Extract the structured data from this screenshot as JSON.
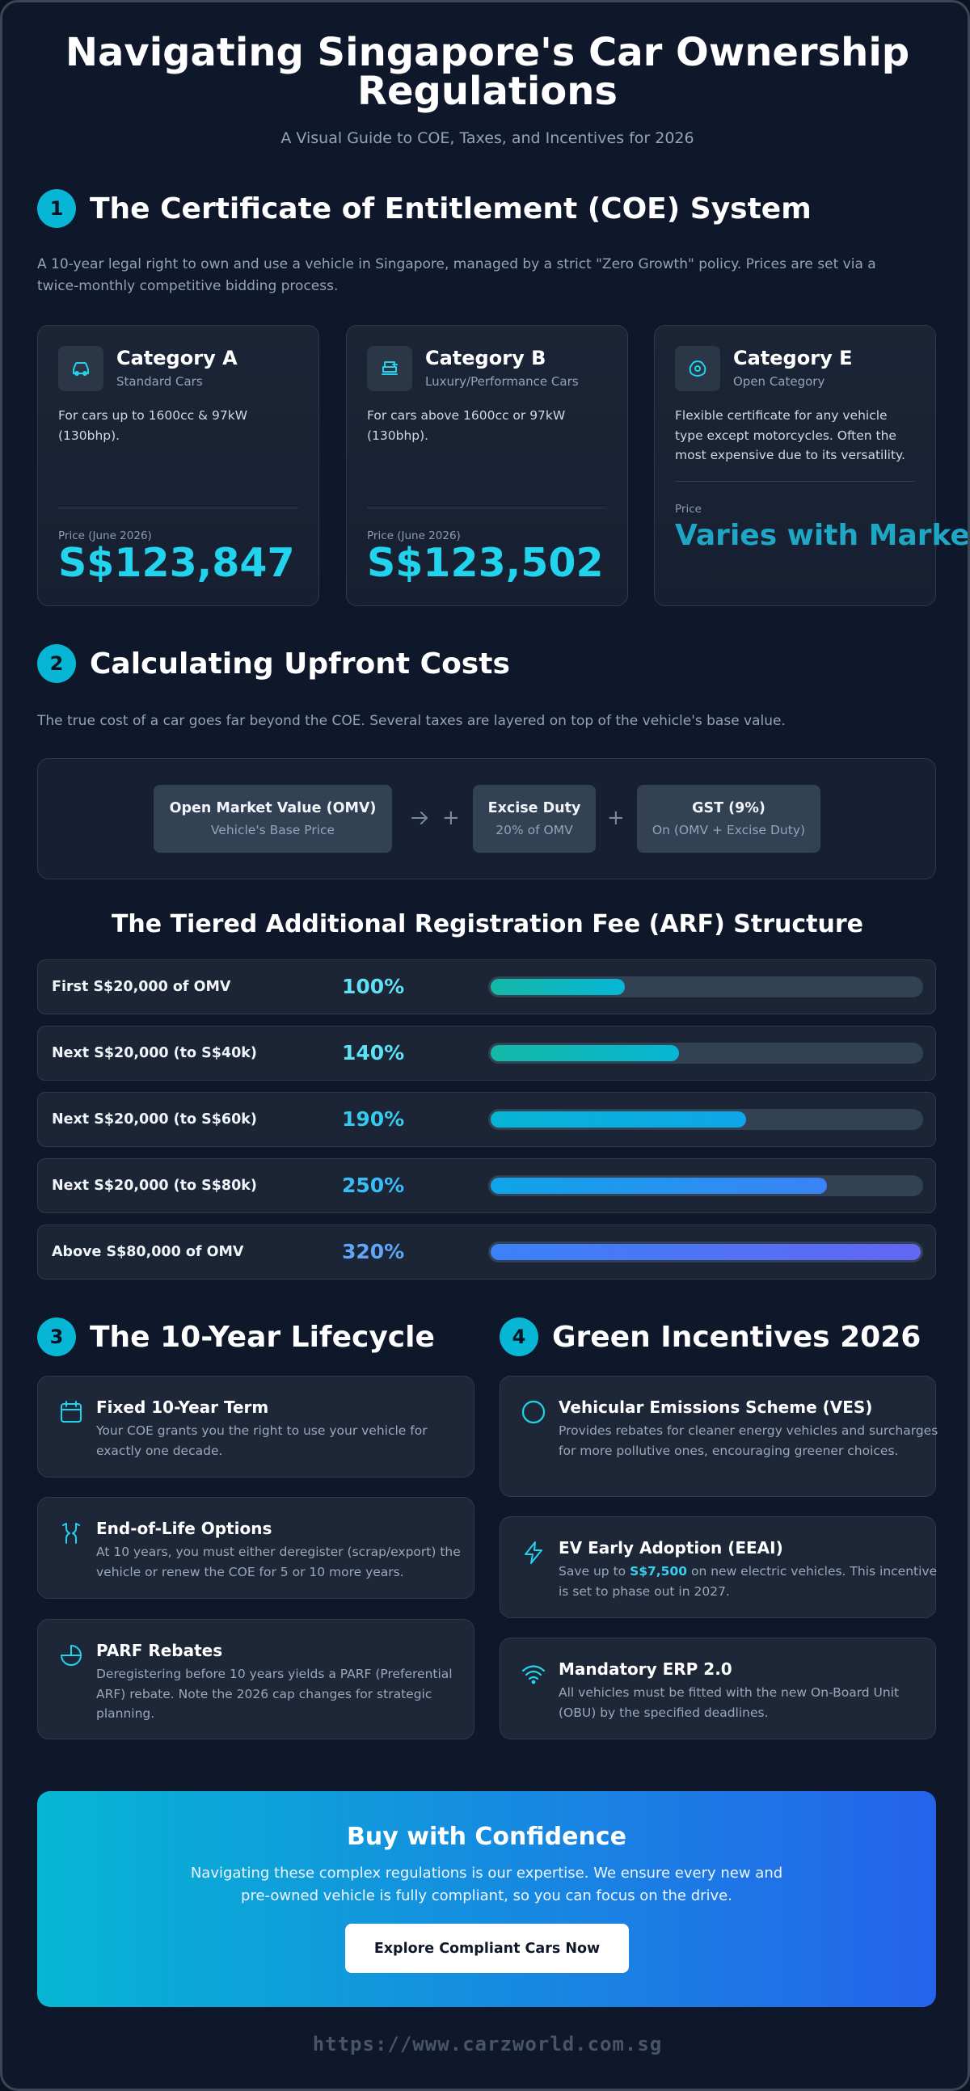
{
  "header": {
    "title": "Navigating Singapore's Car Ownership Regulations",
    "subtitle": "A Visual Guide to COE, Taxes, and Incentives for 2026"
  },
  "colors": {
    "accent": "#06b6d4",
    "price": "#22d3ee",
    "background": "#0f172a",
    "card": "#1b2536",
    "cta_gradient_start": "#06b6d4",
    "cta_gradient_end": "#2563eb"
  },
  "coe_section": {
    "number": "1",
    "title": "The Certificate of Entitlement (COE) System",
    "description": "A 10-year legal right to own and use a vehicle in Singapore, managed by a strict \"Zero Growth\" policy. Prices are set via a twice-monthly competitive bidding process.",
    "categories": [
      {
        "icon": "car-icon",
        "name": "Category A",
        "subtitle": "Standard Cars",
        "description": "For cars up to 1600cc & 97kW (130bhp).",
        "price_label": "Price (June 2026)",
        "price": "S$123,847"
      },
      {
        "icon": "luxury-car-icon",
        "name": "Category B",
        "subtitle": "Luxury/Performance Cars",
        "description": "For cars above 1600cc or 97kW (130bhp).",
        "price_label": "Price (June 2026)",
        "price": "S$123,502"
      },
      {
        "icon": "open-category-icon",
        "name": "Category E",
        "subtitle": "Open Category",
        "description": "Flexible certificate for any vehicle type except motorcycles. Often the most expensive due to its versatility.",
        "price_label": "Price",
        "price": "Varies with Market"
      }
    ]
  },
  "upfront_section": {
    "number": "2",
    "title": "Calculating Upfront Costs",
    "description": "The true cost of a car goes far beyond the COE. Several taxes are layered on top of the vehicle's base value.",
    "formula": [
      {
        "title": "Open Market Value (OMV)",
        "subtitle": "Vehicle's Base Price"
      },
      {
        "title": "Excise Duty",
        "subtitle": "20% of OMV"
      },
      {
        "title": "GST (9%)",
        "subtitle": "On (OMV + Excise Duty)"
      }
    ],
    "operator_plus": "+",
    "arf_title": "The Tiered Additional Registration Fee (ARF) Structure",
    "arf_tiers": [
      {
        "label": "First S$20,000 of OMV",
        "rate": "100%",
        "rate_value": 100,
        "color_start": "#14b8a6",
        "color_end": "#06b6d4",
        "text_color": "#5ee0f5"
      },
      {
        "label": "Next S$20,000 (to S$40k)",
        "rate": "140%",
        "rate_value": 140,
        "color_start": "#14b8a6",
        "color_end": "#06b6d4",
        "text_color": "#5ee0f5"
      },
      {
        "label": "Next S$20,000 (to S$60k)",
        "rate": "190%",
        "rate_value": 190,
        "color_start": "#06b6d4",
        "color_end": "#0ea5e9",
        "text_color": "#38c8ee"
      },
      {
        "label": "Next S$20,000 (to S$80k)",
        "rate": "250%",
        "rate_value": 250,
        "color_start": "#0ea5e9",
        "color_end": "#3b82f6",
        "text_color": "#38bdf8"
      },
      {
        "label": "Above S$80,000 of OMV",
        "rate": "320%",
        "rate_value": 320,
        "color_start": "#3b82f6",
        "color_end": "#6366f1",
        "text_color": "#60a5fa"
      }
    ],
    "arf_max_rate": 320
  },
  "lifecycle_section": {
    "number": "3",
    "title": "The 10-Year Lifecycle",
    "items": [
      {
        "icon": "calendar-icon",
        "title": "Fixed 10-Year Term",
        "description": "Your COE grants you the right to use your vehicle for exactly one decade."
      },
      {
        "icon": "options-icon",
        "title": "End-of-Life Options",
        "description": "At 10 years, you must either deregister (scrap/export) the vehicle or renew the COE for 5 or 10 more years."
      },
      {
        "icon": "pie-chart-icon",
        "title": "PARF Rebates",
        "description": "Deregistering before 10 years yields a PARF (Preferential ARF) rebate. Note the 2026 cap changes for strategic planning."
      }
    ]
  },
  "incentives_section": {
    "number": "4",
    "title": "Green Incentives 2026",
    "items": [
      {
        "icon": "circle-icon",
        "title": "Vehicular Emissions Scheme (VES)",
        "description": "Provides rebates for cleaner energy vehicles and surcharges for more pollutive ones, encouraging greener choices."
      },
      {
        "icon": "lightning-icon",
        "title": "EV Early Adoption (EEAI)",
        "description_before": "Save up to ",
        "highlight": "S$7,500",
        "description_after": " on new electric vehicles. This incentive is set to phase out in 2027."
      },
      {
        "icon": "wifi-icon",
        "title": "Mandatory ERP 2.0",
        "description": "All vehicles must be fitted with the new On-Board Unit (OBU) by the specified deadlines."
      }
    ]
  },
  "cta": {
    "title": "Buy with Confidence",
    "text": "Navigating these complex regulations is our expertise. We ensure every new and pre-owned vehicle is fully compliant, so you can focus on the drive.",
    "button_label": "Explore Compliant Cars Now"
  },
  "footer": {
    "url": "https://www.carzworld.com.sg"
  }
}
